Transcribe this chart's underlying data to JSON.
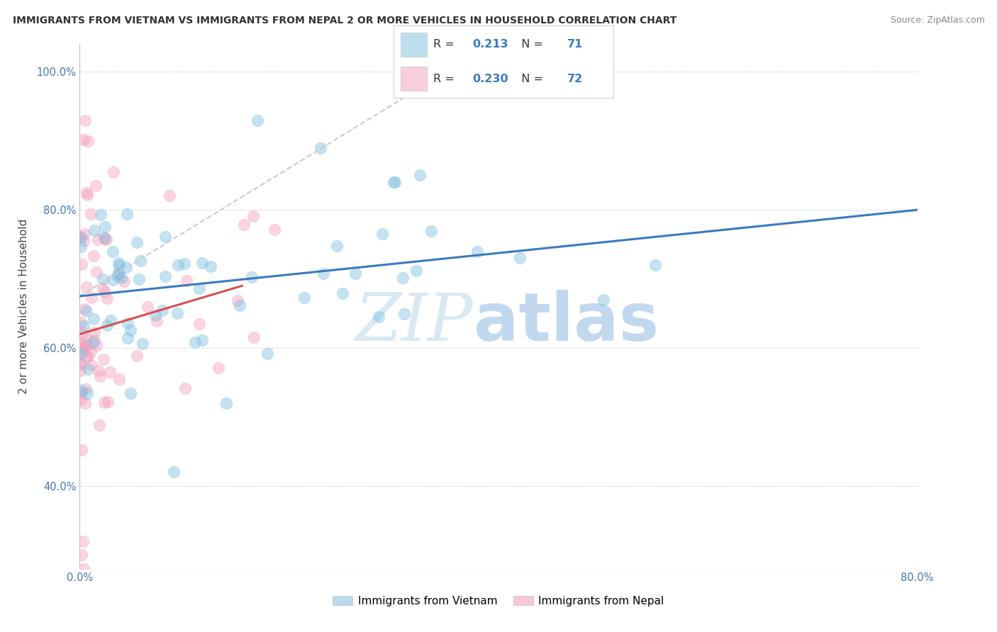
{
  "title": "IMMIGRANTS FROM VIETNAM VS IMMIGRANTS FROM NEPAL 2 OR MORE VEHICLES IN HOUSEHOLD CORRELATION CHART",
  "source": "Source: ZipAtlas.com",
  "ylabel": "2 or more Vehicles in Household",
  "xlim": [
    0.0,
    0.8
  ],
  "ylim": [
    0.28,
    1.04
  ],
  "xtick_positions": [
    0.0,
    0.1,
    0.2,
    0.3,
    0.4,
    0.5,
    0.6,
    0.7,
    0.8
  ],
  "xticklabels": [
    "0.0%",
    "",
    "",
    "",
    "",
    "",
    "",
    "",
    "80.0%"
  ],
  "ytick_positions": [
    0.4,
    0.6,
    0.8,
    1.0
  ],
  "yticklabels": [
    "40.0%",
    "60.0%",
    "80.0%",
    "100.0%"
  ],
  "vietnam_color": "#7fbfdf",
  "nepal_color": "#f4a0bb",
  "vietnam_line_color": "#3a7abf",
  "nepal_line_color": "#d94f4f",
  "dash_line_color": "#cccccc",
  "tick_color": "#4477aa",
  "grid_color": "#dddddd",
  "r_vietnam": "0.213",
  "n_vietnam": "71",
  "r_nepal": "0.230",
  "n_nepal": "72",
  "watermark_zip": "ZIP",
  "watermark_atlas": "atlas",
  "legend_vietnam_label": "Immigrants from Vietnam",
  "legend_nepal_label": "Immigrants from Nepal",
  "background_color": "#ffffff",
  "vietnam_line_x0": 0.0,
  "vietnam_line_y0": 0.675,
  "vietnam_line_x1": 0.8,
  "vietnam_line_y1": 0.8,
  "nepal_line_x0": 0.0,
  "nepal_line_y0": 0.62,
  "nepal_line_x1": 0.155,
  "nepal_line_y1": 0.69,
  "dash_line_x0": 0.0,
  "dash_line_y0": 0.675,
  "dash_line_x1": 0.35,
  "dash_line_y1": 1.0
}
